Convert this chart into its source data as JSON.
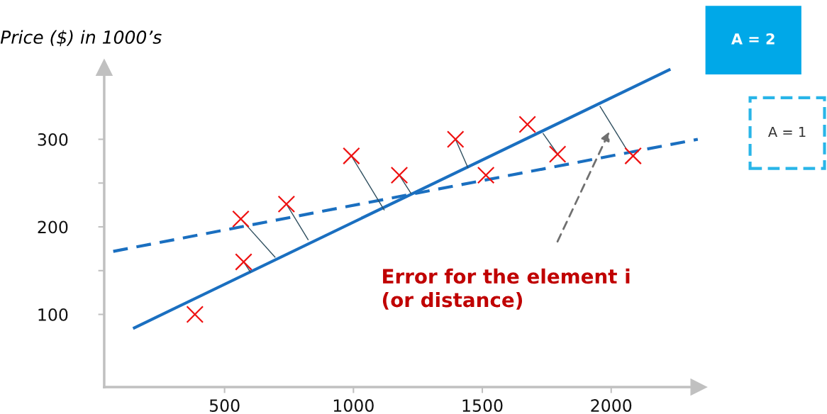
{
  "chart_data": {
    "type": "scatter",
    "ylabel": "Price ($) in 1000’s",
    "xlim": [
      33,
      2340
    ],
    "ylim": [
      17,
      382
    ],
    "xticks": [
      500,
      1000,
      1500,
      2000
    ],
    "yticks": [
      100,
      {
        "value": 150,
        "label": null
      },
      200,
      {
        "value": 250,
        "label": null
      },
      300
    ],
    "grid": false,
    "legend": false,
    "annotations": [
      "Error for the element i\n(or distance)"
    ],
    "series": [
      {
        "marker": "cross",
        "color": "#ee1111",
        "x": [
          385,
          563,
          574,
          740,
          992,
          1178,
          1396,
          1514,
          1675,
          1792,
          2085
        ],
        "values": [
          100,
          209,
          160,
          226,
          281,
          259,
          300,
          259,
          317,
          283,
          281
        ]
      },
      {
        "type": "line",
        "name": "A = 2",
        "line_style": "solid",
        "color": "#1a6fc0",
        "x": [
          145,
          2230
        ],
        "values": [
          84,
          380
        ]
      },
      {
        "type": "line",
        "name": "A = 1",
        "line_style": "dashed",
        "color": "#1a6fc0",
        "x": [
          68,
          2336
        ],
        "values": [
          172,
          300
        ]
      },
      {
        "type": "line",
        "line_style": "solid",
        "color": "#2f4f5f",
        "x": [
          563,
          697
        ],
        "values": [
          209,
          165
        ]
      },
      {
        "type": "line",
        "line_style": "solid",
        "color": "#2f4f5f",
        "x": [
          574,
          601
        ],
        "values": [
          160,
          148
        ]
      },
      {
        "type": "line",
        "line_style": "solid",
        "color": "#2f4f5f",
        "x": [
          740,
          825
        ],
        "values": [
          226,
          185
        ]
      },
      {
        "type": "line",
        "line_style": "solid",
        "color": "#2f4f5f",
        "x": [
          992,
          1120
        ],
        "values": [
          281,
          219
        ]
      },
      {
        "type": "line",
        "line_style": "solid",
        "color": "#2f4f5f",
        "x": [
          1178,
          1224
        ],
        "values": [
          259,
          238
        ]
      },
      {
        "type": "line",
        "line_style": "solid",
        "color": "#2f4f5f",
        "x": [
          1396,
          1445
        ],
        "values": [
          300,
          267
        ]
      },
      {
        "type": "line",
        "line_style": "solid",
        "color": "#2f4f5f",
        "x": [
          1735,
          1790
        ],
        "values": [
          307,
          284
        ]
      },
      {
        "type": "line",
        "line_style": "solid",
        "color": "#2f4f5f",
        "x": [
          1956,
          2063
        ],
        "values": [
          338,
          287
        ]
      }
    ]
  }
}
